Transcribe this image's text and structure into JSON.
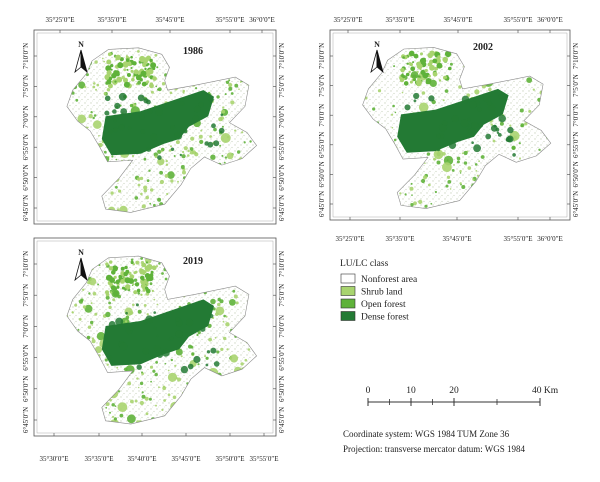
{
  "panels": [
    {
      "year": "1986",
      "lon_ticks_top": [
        "35°25′0″E",
        "35°35′0″E",
        "35°45′0″E",
        "35°55′0″E",
        "36°0′0″E"
      ],
      "lon_ticks_bottom": [],
      "lat_ticks": [
        "7°10′0″N",
        "7°5′0″N",
        "7°0′0″N",
        "6°55′0″N",
        "6°50′0″N",
        "6°45′0″N"
      ]
    },
    {
      "year": "2002",
      "lon_ticks_top": [
        "35°25′0″E",
        "35°35′0″E",
        "35°45′0″E",
        "35°55′0″E",
        "36°0′0″E"
      ],
      "lon_ticks_bottom": [
        "35°25′0″E",
        "35°35′0″E",
        "35°45′0″E",
        "35°55′0″E",
        "36°0′0″E"
      ],
      "lat_ticks": [
        "7°10′0″N",
        "7°5′0″N",
        "7°0′0″N",
        "6°55′0″N",
        "6°50′0″N",
        "6°45′0″N"
      ]
    },
    {
      "year": "2019",
      "lon_ticks_top": [],
      "lon_ticks_bottom": [
        "35°30′0″E",
        "35°35′0″E",
        "35°40′0″E",
        "35°45′0″E",
        "35°50′0″E",
        "35°55′0″E"
      ],
      "lat_ticks": [
        "7°10′0″N",
        "7°5′0″N",
        "7°0′0″N",
        "6°55′0″N",
        "6°50′0″N",
        "6°45′0″N"
      ]
    }
  ],
  "north_label": "N",
  "legend": {
    "title": "LU/LC class",
    "items": [
      {
        "label": "Nonforest area",
        "color": "#ffffff"
      },
      {
        "label": "Shrub land",
        "color": "#a8d46f"
      },
      {
        "label": "Open forest",
        "color": "#5fb23a"
      },
      {
        "label": "Dense forest",
        "color": "#237a34"
      }
    ]
  },
  "scale_bar": {
    "labels": [
      "0",
      "10",
      "20",
      "40 Km"
    ]
  },
  "notes": [
    "Coordinate system: WGS 1984 TUM Zone 36",
    "Projection: transverse mercator datum: WGS 1984"
  ]
}
